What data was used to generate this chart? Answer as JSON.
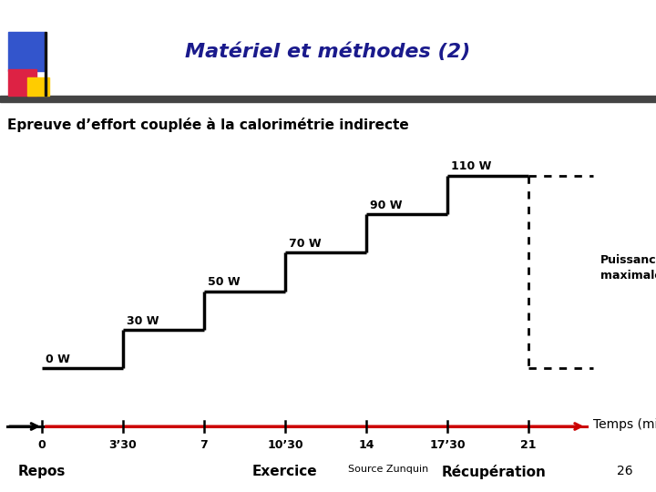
{
  "title": "Matériel et méthodes (2)",
  "subtitle": "Epreuve d’effort couplée à la calorimétrie indirecte",
  "puissance_label": "Puissance\nmaximale",
  "time_label": "Temps (min)",
  "source_label": "Source Zunquin",
  "slide_number": "26",
  "repos_label": "Repos",
  "exercice_label": "Exercice",
  "recuperation_label": "Récupération",
  "tick_positions": [
    0,
    3.5,
    7,
    10.5,
    14,
    17.5,
    21
  ],
  "tick_labels": [
    "0",
    "3’30",
    "7",
    "10’30",
    "14",
    "17’30",
    "21"
  ],
  "steps": [
    {
      "x_start": 0,
      "x_end": 3.5,
      "y": 0,
      "label": "0 W"
    },
    {
      "x_start": 3.5,
      "x_end": 7,
      "y": 1,
      "label": "30 W"
    },
    {
      "x_start": 7,
      "x_end": 10.5,
      "y": 2,
      "label": "50 W"
    },
    {
      "x_start": 10.5,
      "x_end": 14,
      "y": 3,
      "label": "70 W"
    },
    {
      "x_start": 14,
      "x_end": 17.5,
      "y": 4,
      "label": "90 W"
    },
    {
      "x_start": 17.5,
      "x_end": 21,
      "y": 5,
      "label": "110 W"
    }
  ],
  "max_power_x": 21,
  "recovery_x_end": 23.8,
  "xlim": [
    -1.8,
    26.5
  ],
  "ylim": [
    -3.2,
    7.0
  ],
  "background_color": "#ffffff",
  "step_color": "#000000",
  "axis_color": "#cc0000",
  "title_color": "#1a1a8c",
  "step_linewidth": 2.5,
  "axis_linewidth": 2.2,
  "step_height": 1.0,
  "blue_sq": [
    0.013,
    0.855,
    0.055,
    0.08
  ],
  "red_sq": [
    0.013,
    0.805,
    0.042,
    0.055
  ],
  "yellow_sq": [
    0.042,
    0.805,
    0.033,
    0.038
  ],
  "darkbar": [
    0.0,
    0.792,
    1.0,
    0.013
  ]
}
